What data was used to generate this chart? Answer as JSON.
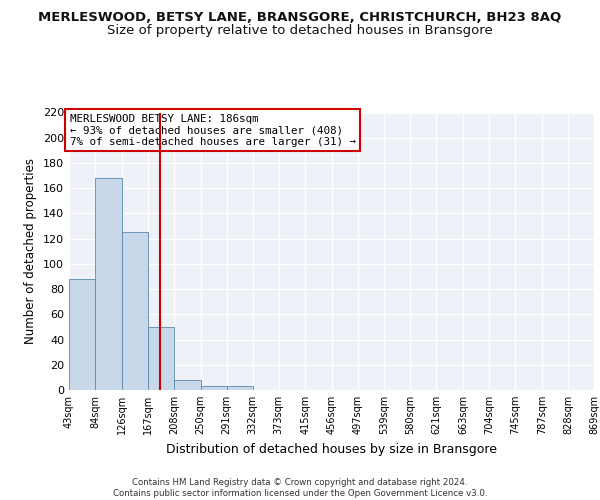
{
  "title": "MERLESWOOD, BETSY LANE, BRANSGORE, CHRISTCHURCH, BH23 8AQ",
  "subtitle": "Size of property relative to detached houses in Bransgore",
  "xlabel": "Distribution of detached houses by size in Bransgore",
  "ylabel": "Number of detached properties",
  "bar_color": "#c8d8e8",
  "bar_edge_color": "#5a8ab0",
  "vline_x": 186,
  "vline_color": "#cc0000",
  "annotation_text": "MERLESWOOD BETSY LANE: 186sqm\n← 93% of detached houses are smaller (408)\n7% of semi-detached houses are larger (31) →",
  "annotation_box_color": "#ffffff",
  "annotation_box_edge": "#cc0000",
  "bins": [
    43,
    84,
    126,
    167,
    208,
    250,
    291,
    332,
    373,
    415,
    456,
    497,
    539,
    580,
    621,
    663,
    704,
    745,
    787,
    828,
    869
  ],
  "bin_labels": [
    "43sqm",
    "84sqm",
    "126sqm",
    "167sqm",
    "208sqm",
    "250sqm",
    "291sqm",
    "332sqm",
    "373sqm",
    "415sqm",
    "456sqm",
    "497sqm",
    "539sqm",
    "580sqm",
    "621sqm",
    "663sqm",
    "704sqm",
    "745sqm",
    "787sqm",
    "828sqm",
    "869sqm"
  ],
  "counts": [
    88,
    168,
    125,
    50,
    8,
    3,
    3,
    0,
    0,
    0,
    0,
    0,
    0,
    0,
    0,
    0,
    0,
    0,
    0,
    0
  ],
  "ylim": [
    0,
    220
  ],
  "yticks": [
    0,
    20,
    40,
    60,
    80,
    100,
    120,
    140,
    160,
    180,
    200,
    220
  ],
  "background_color": "#eef2f8",
  "grid_color": "#ffffff",
  "title_fontsize": 9.5,
  "subtitle_fontsize": 9.5,
  "xlabel_fontsize": 9,
  "ylabel_fontsize": 8.5,
  "footer_text": "Contains HM Land Registry data © Crown copyright and database right 2024.\nContains public sector information licensed under the Open Government Licence v3.0."
}
